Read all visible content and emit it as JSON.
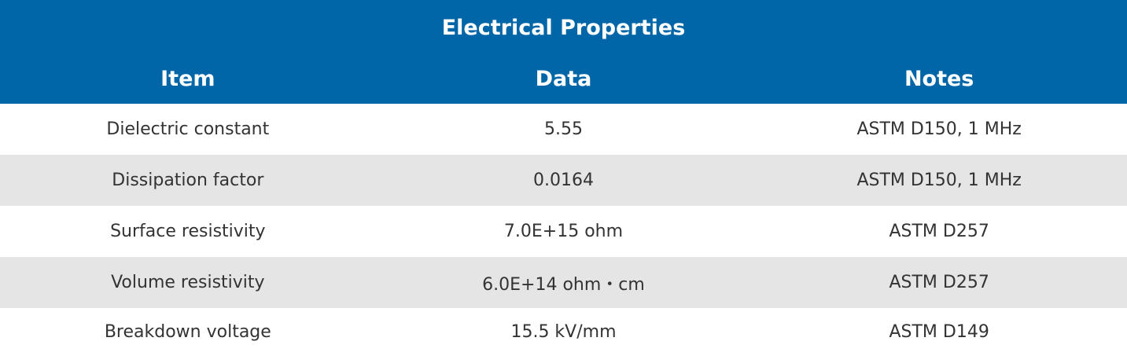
{
  "table": {
    "title": "Electrical Properties",
    "header": [
      "Item",
      "Data",
      "Notes"
    ],
    "rows": [
      [
        "Dielectric constant",
        "5.55",
        "ASTM D150, 1 MHz"
      ],
      [
        "Dissipation factor",
        "0.0164",
        "ASTM D150, 1 MHz"
      ],
      [
        "Surface resistivity",
        "7.0E+15 ohm",
        "ASTM D257"
      ],
      [
        "Volume resistivity",
        "6.0E+14 ohm・cm",
        "ASTM D257"
      ],
      [
        "Breakdown voltage",
        "15.5 kV/mm",
        "ASTM D149"
      ]
    ]
  }
}
